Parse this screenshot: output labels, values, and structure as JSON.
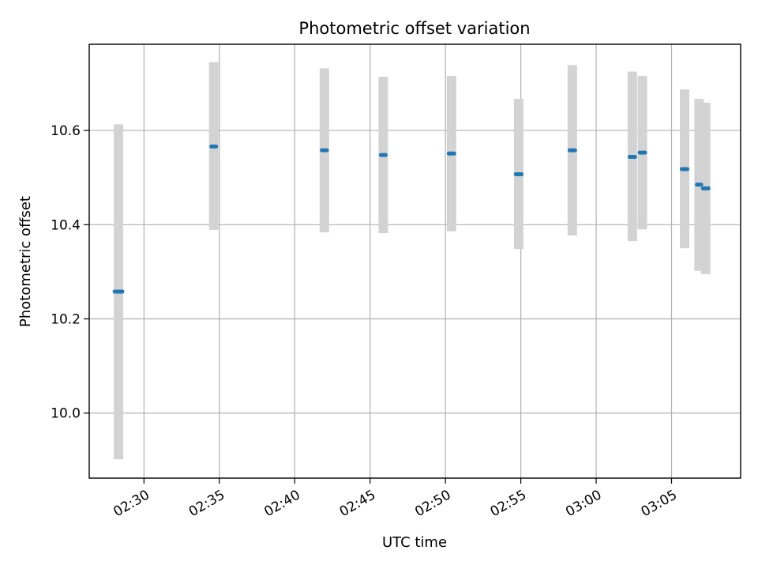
{
  "chart_data": {
    "type": "scatter",
    "title": "Photometric offset variation",
    "xlabel": "UTC time",
    "ylabel": "Photometric offset",
    "grid": true,
    "legend": "none",
    "x_axis_type": "time",
    "xlim": [
      "02:26:22",
      "03:09:35"
    ],
    "ylim": [
      9.862,
      10.783
    ],
    "x_ticks": [
      "02:30",
      "02:35",
      "02:40",
      "02:45",
      "02:50",
      "02:55",
      "03:00",
      "03:05"
    ],
    "y_ticks": [
      "10.0",
      "10.2",
      "10.4",
      "10.6"
    ],
    "colors": {
      "point": "#1f77b4",
      "error_bar": "#d3d3d3"
    },
    "series": [
      {
        "points": [
          {
            "x_start": "02:28:03",
            "x_end": "02:28:34",
            "y": 10.258,
            "y_low": 9.902,
            "y_high": 10.613
          },
          {
            "x_start": "02:34:28",
            "x_end": "02:34:47",
            "y": 10.566,
            "y_low": 10.389,
            "y_high": 10.745
          },
          {
            "x_start": "02:41:48",
            "x_end": "02:42:08",
            "y": 10.558,
            "y_low": 10.384,
            "y_high": 10.732
          },
          {
            "x_start": "02:45:43",
            "x_end": "02:46:02",
            "y": 10.548,
            "y_low": 10.382,
            "y_high": 10.714
          },
          {
            "x_start": "02:50:13",
            "x_end": "02:50:35",
            "y": 10.551,
            "y_low": 10.386,
            "y_high": 10.716
          },
          {
            "x_start": "02:54:40",
            "x_end": "02:55:03",
            "y": 10.507,
            "y_low": 10.348,
            "y_high": 10.667
          },
          {
            "x_start": "02:58:14",
            "x_end": "02:58:36",
            "y": 10.558,
            "y_low": 10.377,
            "y_high": 10.739
          },
          {
            "x_start": "03:02:13",
            "x_end": "03:02:35",
            "y": 10.544,
            "y_low": 10.365,
            "y_high": 10.725
          },
          {
            "x_start": "03:02:53",
            "x_end": "03:03:15",
            "y": 10.553,
            "y_low": 10.39,
            "y_high": 10.716
          },
          {
            "x_start": "03:05:41",
            "x_end": "03:06:03",
            "y": 10.518,
            "y_low": 10.35,
            "y_high": 10.687
          },
          {
            "x_start": "03:06:41",
            "x_end": "03:06:58",
            "y": 10.485,
            "y_low": 10.302,
            "y_high": 10.667
          },
          {
            "x_start": "03:07:05",
            "x_end": "03:07:27",
            "y": 10.477,
            "y_low": 10.295,
            "y_high": 10.659
          }
        ]
      }
    ]
  }
}
